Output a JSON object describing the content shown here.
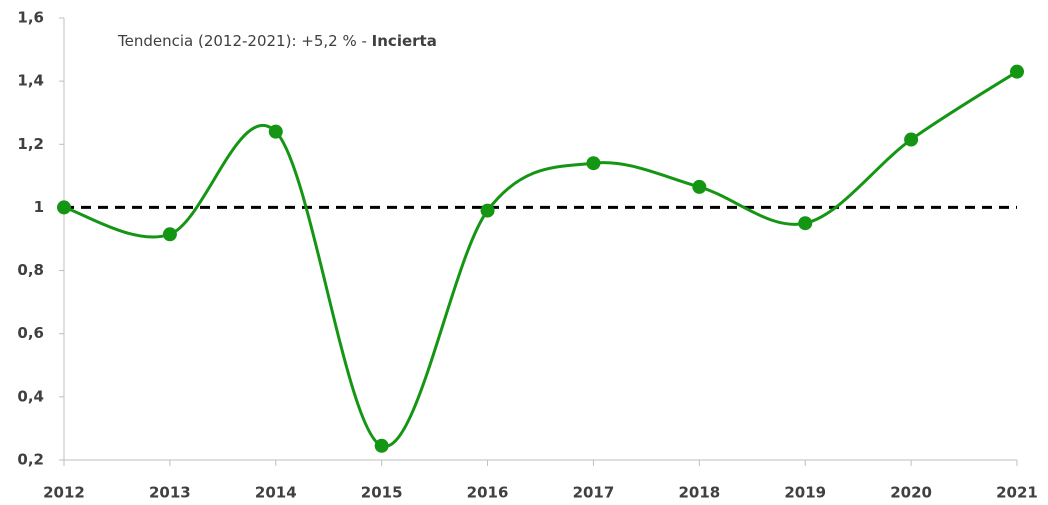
{
  "chart_data": {
    "type": "line",
    "annotation": {
      "text": "Tendencia (2012-2021): +5,2 % - ",
      "emphasis": "Incierta"
    },
    "x": [
      2012,
      2013,
      2014,
      2015,
      2016,
      2017,
      2018,
      2019,
      2020,
      2021
    ],
    "series": [
      {
        "color": "#149614",
        "values": [
          1.0,
          0.915,
          1.24,
          0.245,
          0.99,
          1.14,
          1.065,
          0.95,
          1.215,
          1.43
        ]
      }
    ],
    "xlim": [
      2012,
      2021
    ],
    "xticks": [
      2012,
      2013,
      2014,
      2015,
      2016,
      2017,
      2018,
      2019,
      2020,
      2021
    ],
    "ylim": [
      0.2,
      1.6
    ],
    "yticks": [
      {
        "value": 0.2,
        "label": "0,2"
      },
      {
        "value": 0.4,
        "label": "0,4"
      },
      {
        "value": 0.6,
        "label": "0,6"
      },
      {
        "value": 0.8,
        "label": "0,8"
      },
      1,
      {
        "value": 1.2,
        "label": "1,2"
      },
      {
        "value": 1.4,
        "label": "1,4"
      },
      {
        "value": 1.6,
        "label": "1,6"
      }
    ],
    "reference_line": {
      "value": 1,
      "color": "#000000"
    },
    "smooth": true,
    "markers": true
  }
}
